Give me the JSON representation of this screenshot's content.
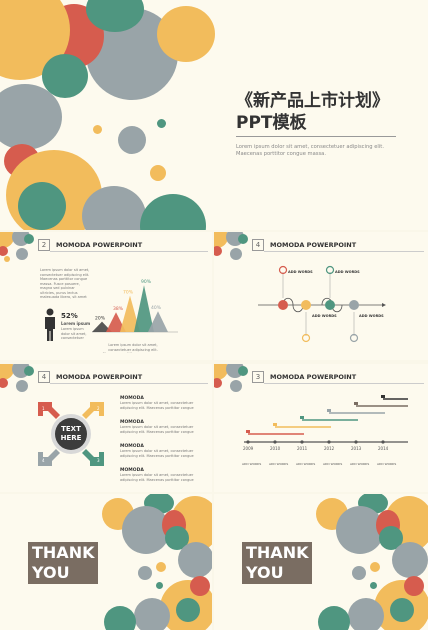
{
  "cover": {
    "title": "《新产品上市计划》",
    "subtitle": "PPT模板",
    "desc_line1": "Lorem ipsum dolor sit amet, consectetuer adipiscing elit.",
    "desc_line2": "Maecenas porttitor congue massa."
  },
  "slide_chart": {
    "number": "2",
    "title": "MOMODA POWERPOINT",
    "body": "Lorem ipsum dolor sit amet, consectetuer adipiscing elit. Maecenas porttitor congue massa. Fusce posuere, magna sed pulvinar ultricies, purus lectus malesuada libero, sit amet commodo magna eros quis urna.",
    "stat_value": "52%",
    "stat_label": "Lorem ipsum",
    "stat_body": "Lorem ipsum dolor sit amet, consectetuer adipiscing elit.",
    "caption": "Lorem ipsum dolor sit amet, consectetuer adipiscing elit. Maecenas porttitor congue massa.",
    "peaks": [
      {
        "value": 20,
        "label": "20%",
        "color": "#4a4a4a"
      },
      {
        "value": 38,
        "label": "38%",
        "color": "#d65c4e"
      },
      {
        "value": 70,
        "label": "70%",
        "color": "#f2bc5c"
      },
      {
        "value": 90,
        "label": "90%",
        "color": "#4f9680"
      },
      {
        "value": 40,
        "label": "40%",
        "color": "#99a4a8"
      }
    ]
  },
  "slide_process": {
    "number": "4",
    "title": "MOMODA POWERPOINT",
    "nodes": [
      {
        "label": "ADD WORDS",
        "color": "#d65c4e"
      },
      {
        "label": "ADD WORDS",
        "color": "#f2bc5c"
      },
      {
        "label": "ADD WORDS",
        "color": "#4f9680"
      },
      {
        "label": "ADD WORDS",
        "color": "#99a4a8"
      }
    ]
  },
  "slide_arrows": {
    "number": "4",
    "title": "MOMODA POWERPOINT",
    "center_line1": "TEXT",
    "center_line2": "HERE",
    "arrow_numbers": [
      "1",
      "2",
      "3",
      "4"
    ],
    "items": [
      {
        "title": "MOMODA",
        "text": "Lorem ipsum dolor sit amet, consectetuer adipiscing elit. Maecenas porttitor congue massa."
      },
      {
        "title": "MOMODA",
        "text": "Lorem ipsum dolor sit amet, consectetuer adipiscing elit. Maecenas porttitor congue massa."
      },
      {
        "title": "MOMODA",
        "text": "Lorem ipsum dolor sit amet, consectetuer adipiscing elit. Maecenas porttitor congue massa."
      },
      {
        "title": "MOMODA",
        "text": "Lorem ipsum dolor sit amet, consectetuer adipiscing elit. Maecenas porttitor congue massa."
      }
    ]
  },
  "slide_timeline": {
    "number": "3",
    "title": "MOMODA POWERPOINT",
    "years": [
      "2009",
      "2010",
      "2011",
      "2012",
      "2013",
      "2014"
    ],
    "col_label": "ADD WORDS",
    "bar_colors": [
      "#d65c4e",
      "#f2bc5c",
      "#4f9680",
      "#99a4a8",
      "#7a6d62",
      "#333333"
    ]
  },
  "ending": {
    "line1": "THANK",
    "line2": "YOU"
  }
}
